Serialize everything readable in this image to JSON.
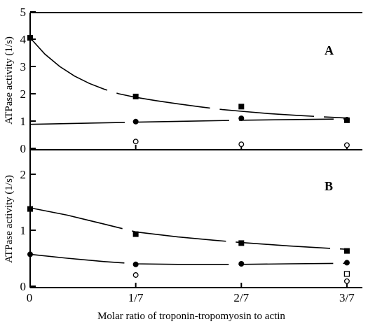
{
  "chart_data": {
    "type": "scatter",
    "xlabel": "Molar ratio of troponin-tropomyosin to actin",
    "x_ticks": [
      "0",
      "1/7",
      "2/7",
      "3/7"
    ],
    "x_values": [
      0,
      0.142857,
      0.285714,
      0.428571
    ],
    "xlim": [
      0,
      0.46
    ],
    "panels": [
      {
        "label": "A",
        "ylabel": "ATPase activity (1/s)",
        "ylim": [
          0,
          5
        ],
        "yticks": [
          "0",
          "1",
          "2",
          "3",
          "4",
          "5"
        ],
        "ytick_values": [
          0,
          1,
          2,
          3,
          4,
          5
        ],
        "series": [
          {
            "marker": "filled-square",
            "x": [
              0,
              0.142857,
              0.285714,
              0.428571
            ],
            "values": [
              4.05,
              1.9,
              1.53,
              1.03
            ]
          },
          {
            "marker": "filled-circle",
            "x": [
              0.142857,
              0.285714,
              0.428571
            ],
            "values": [
              0.98,
              1.1,
              1.05
            ]
          },
          {
            "marker": "open-circle",
            "x": [
              0.142857,
              0.285714,
              0.428571
            ],
            "values": [
              0.25,
              0.15,
              0.12
            ]
          }
        ],
        "fit_curves": [
          {
            "x": [
              0,
              0.02,
              0.04,
              0.06,
              0.08,
              0.1,
              0.12,
              0.142857,
              0.17,
              0.2,
              0.23,
              0.26,
              0.285714,
              0.32,
              0.36,
              0.4,
              0.428571
            ],
            "values": [
              4.05,
              3.45,
              3.0,
              2.65,
              2.38,
              2.17,
              2.0,
              1.87,
              1.75,
              1.63,
              1.52,
              1.42,
              1.36,
              1.28,
              1.21,
              1.15,
              1.11
            ]
          },
          {
            "x": [
              0,
              0.142857,
              0.285714,
              0.428571
            ],
            "values": [
              0.88,
              0.96,
              1.03,
              1.08
            ]
          }
        ]
      },
      {
        "label": "B",
        "ylabel": "ATPase activity (1/s)",
        "ylim": [
          0,
          2.4
        ],
        "yticks": [
          "0",
          "1",
          "2"
        ],
        "ytick_values": [
          0,
          1,
          2
        ],
        "series": [
          {
            "marker": "filled-square",
            "x": [
              0,
              0.142857,
              0.285714,
              0.428571
            ],
            "values": [
              1.38,
              0.93,
              0.77,
              0.63
            ]
          },
          {
            "marker": "filled-circle",
            "x": [
              0,
              0.142857,
              0.285714,
              0.428571
            ],
            "values": [
              0.57,
              0.39,
              0.4,
              0.42
            ]
          },
          {
            "marker": "open-square",
            "x": [
              0.428571
            ],
            "values": [
              0.22
            ]
          },
          {
            "marker": "open-circle",
            "x": [
              0.142857,
              0.428571
            ],
            "values": [
              0.2,
              0.09
            ]
          }
        ],
        "fit_curves": [
          {
            "x": [
              0,
              0.05,
              0.1,
              0.142857,
              0.2,
              0.25,
              0.285714,
              0.35,
              0.4,
              0.428571
            ],
            "values": [
              1.4,
              1.27,
              1.11,
              0.97,
              0.88,
              0.82,
              0.78,
              0.72,
              0.68,
              0.66
            ]
          },
          {
            "x": [
              0,
              0.05,
              0.1,
              0.142857,
              0.2,
              0.285714,
              0.35,
              0.428571
            ],
            "values": [
              0.57,
              0.5,
              0.44,
              0.4,
              0.39,
              0.39,
              0.4,
              0.41
            ]
          }
        ]
      }
    ]
  }
}
